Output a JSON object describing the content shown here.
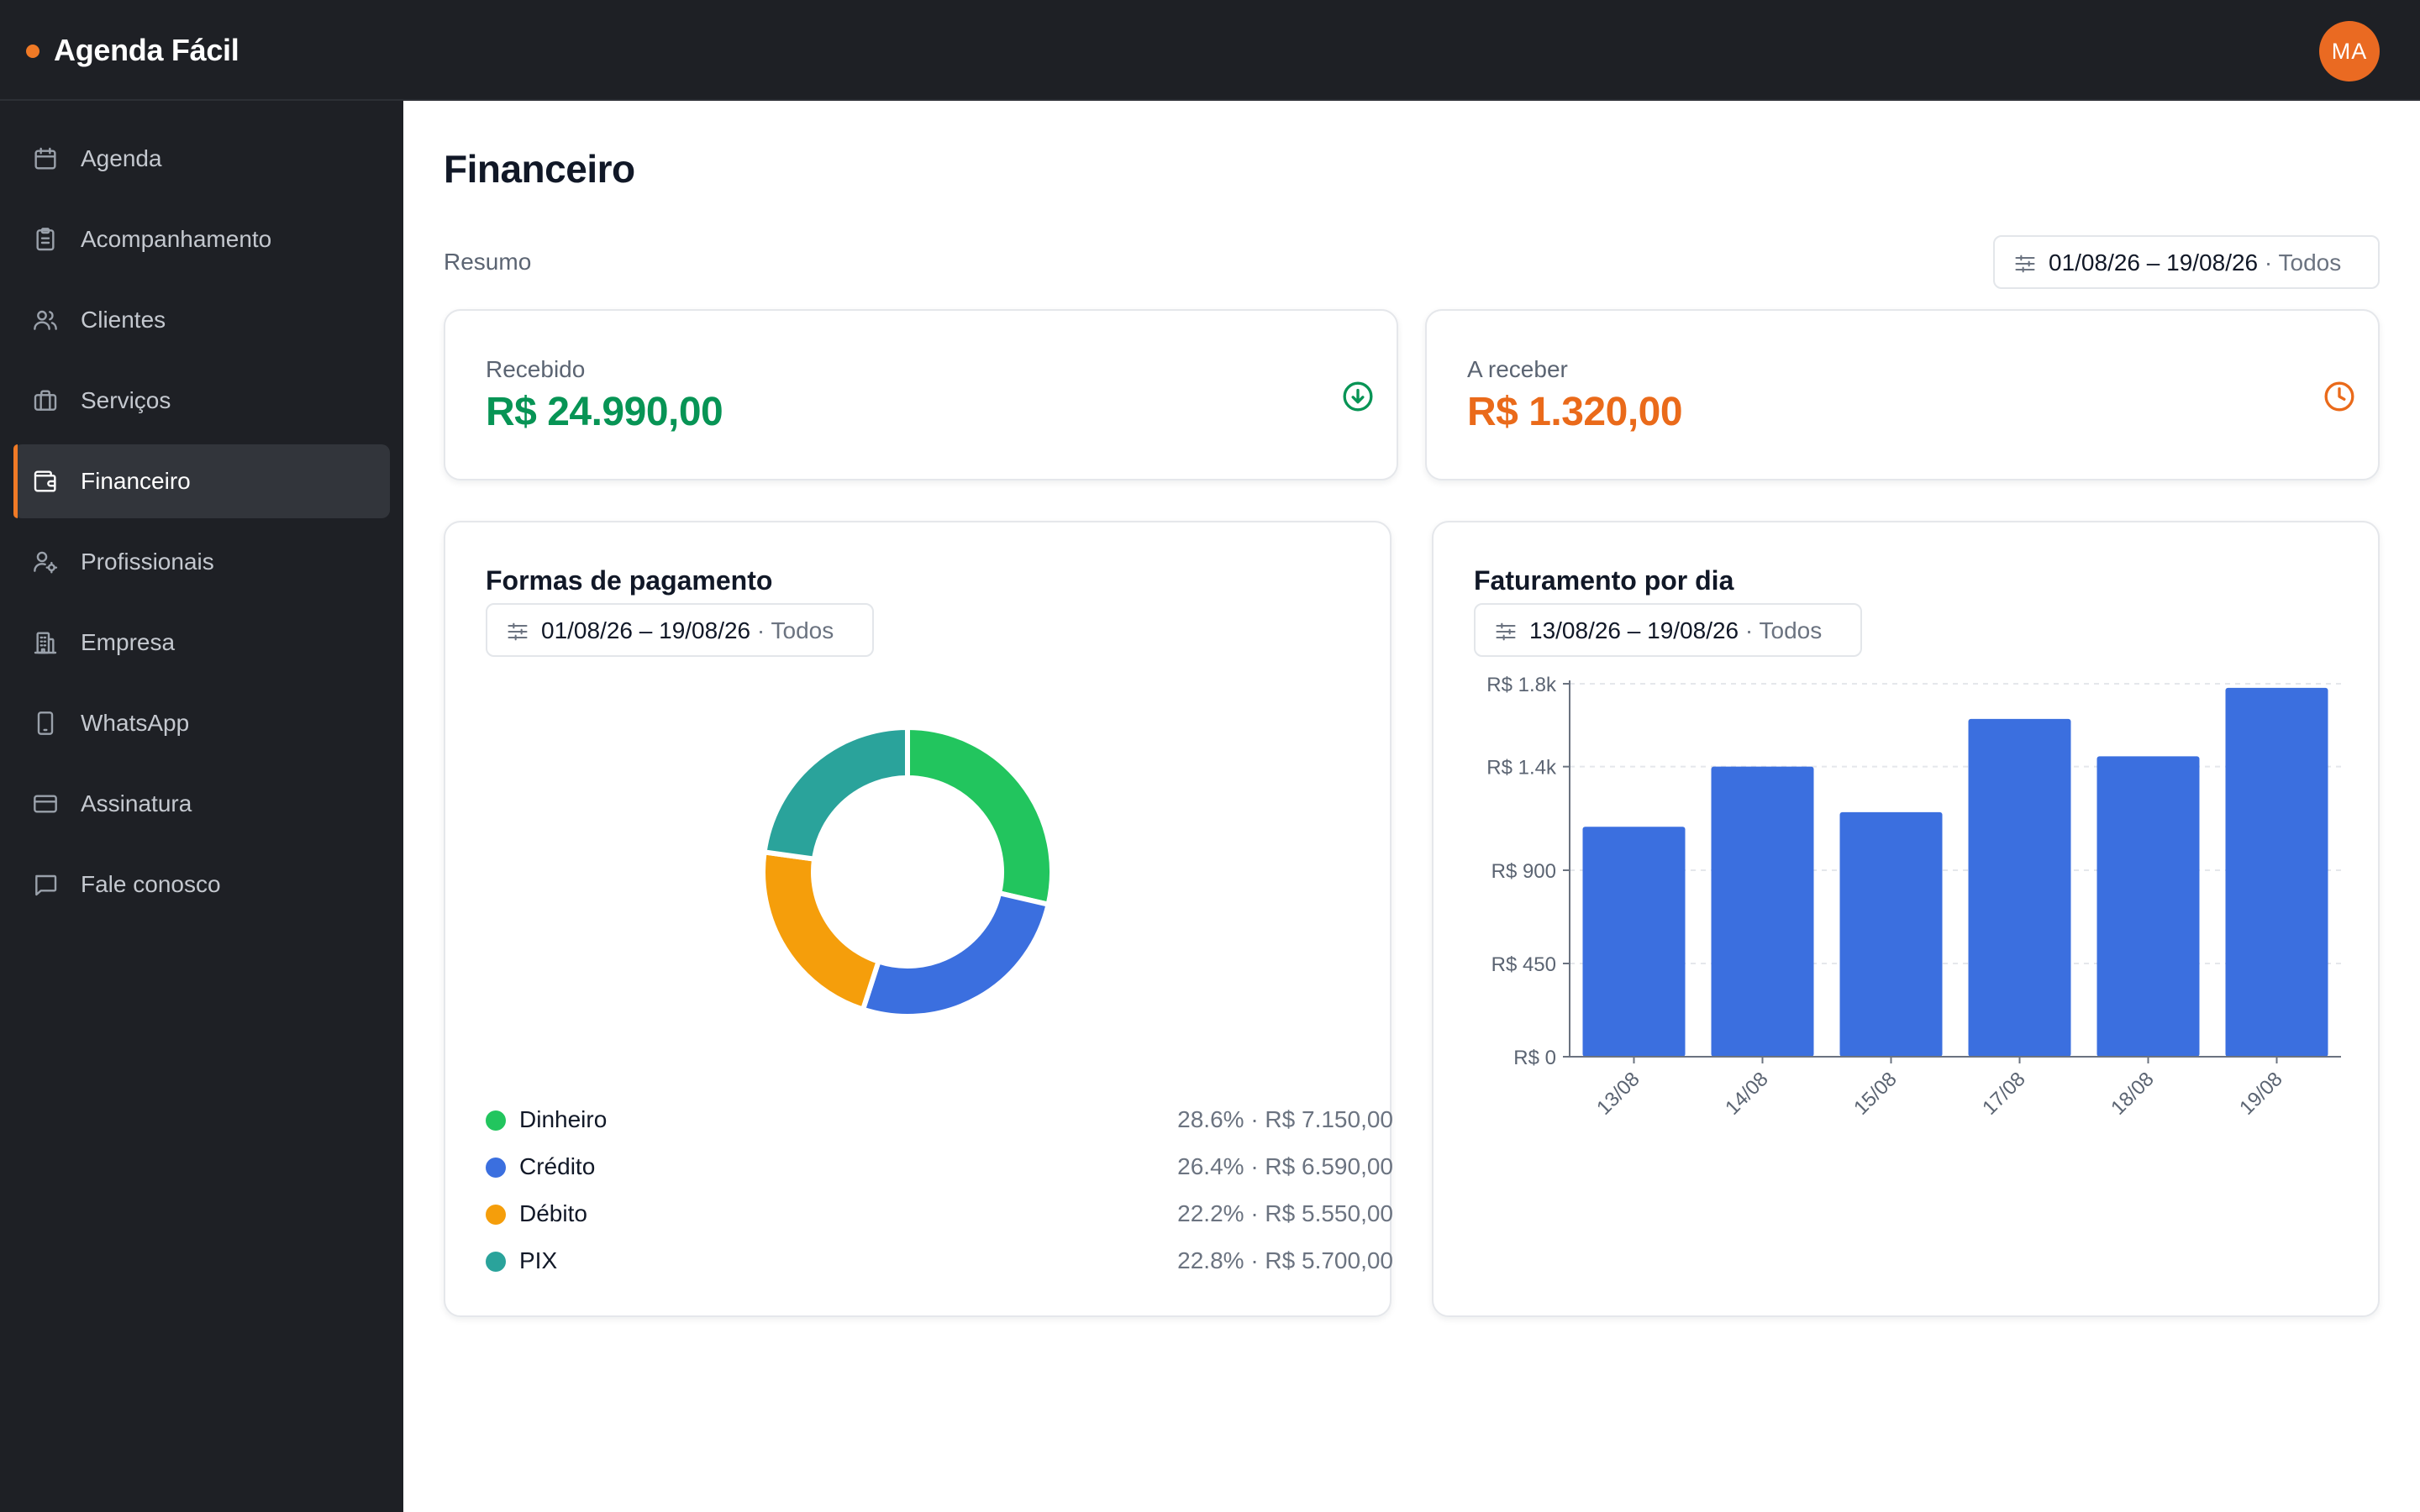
{
  "app": {
    "name": "Agenda Fácil",
    "accent": "#f07a26"
  },
  "user": {
    "initials": "MA"
  },
  "sidebar": {
    "items": [
      {
        "label": "Agenda",
        "icon": "calendar-icon",
        "active": false
      },
      {
        "label": "Acompanhamento",
        "icon": "clipboard-icon",
        "active": false
      },
      {
        "label": "Clientes",
        "icon": "users-icon",
        "active": false
      },
      {
        "label": "Serviços",
        "icon": "briefcase-icon",
        "active": false
      },
      {
        "label": "Financeiro",
        "icon": "wallet-icon",
        "active": true
      },
      {
        "label": "Profissionais",
        "icon": "user-cog-icon",
        "active": false
      },
      {
        "label": "Empresa",
        "icon": "building-icon",
        "active": false
      },
      {
        "label": "WhatsApp",
        "icon": "smartphone-icon",
        "active": false
      },
      {
        "label": "Assinatura",
        "icon": "credit-card-icon",
        "active": false
      },
      {
        "label": "Fale conosco",
        "icon": "message-icon",
        "active": false
      }
    ]
  },
  "main": {
    "title": "Financeiro",
    "summary_label": "Resumo",
    "summary_filter": {
      "date_range": "01/08/26 – 19/08/26",
      "scope": "· Todos"
    },
    "stats": {
      "received": {
        "label": "Recebido",
        "value": "R$ 24.990,00",
        "color": "#079455",
        "icon": "arrow-down-circle-icon"
      },
      "receivable": {
        "label": "A receber",
        "value": "R$ 1.320,00",
        "color": "#ea6a1a",
        "icon": "clock-icon"
      }
    },
    "payments": {
      "title": "Formas de pagamento",
      "filter": {
        "date_range": "01/08/26 – 19/08/26",
        "scope": "· Todos"
      },
      "legend": [
        {
          "name": "Dinheiro",
          "value": "28.6% · R$ 7.150,00",
          "color": "#22c55e"
        },
        {
          "name": "Crédito",
          "value": "26.4% · R$ 6.590,00",
          "color": "#3b6fdf"
        },
        {
          "name": "Débito",
          "value": "22.2% · R$ 5.550,00",
          "color": "#f59e0b"
        },
        {
          "name": "PIX",
          "value": "22.8% · R$ 5.700,00",
          "color": "#2aa39b"
        }
      ]
    },
    "revenue": {
      "title": "Faturamento por dia",
      "filter": {
        "date_range": "13/08/26 – 19/08/26",
        "scope": "· Todos"
      }
    }
  },
  "chart_data": [
    {
      "type": "pie",
      "title": "Formas de pagamento",
      "categories": [
        "Dinheiro",
        "Crédito",
        "Débito",
        "PIX"
      ],
      "values": [
        7150,
        6590,
        5550,
        5700
      ],
      "percentages": [
        28.6,
        26.4,
        22.2,
        22.8
      ],
      "colors": [
        "#22c55e",
        "#3b6fdf",
        "#f59e0b",
        "#2aa39b"
      ],
      "donut": true
    },
    {
      "type": "bar",
      "title": "Faturamento por dia",
      "categories": [
        "13/08",
        "14/08",
        "15/08",
        "17/08",
        "18/08",
        "19/08"
      ],
      "values": [
        1110,
        1400,
        1180,
        1630,
        1450,
        1780
      ],
      "ylim": [
        0,
        1800
      ],
      "yticks": [
        0,
        450,
        900,
        1400,
        1800
      ],
      "ytick_labels": [
        "R$ 0",
        "R$ 450",
        "R$ 900",
        "R$ 1.4k",
        "R$ 1.8k"
      ],
      "color": "#3b6fdf",
      "grid": true
    }
  ]
}
